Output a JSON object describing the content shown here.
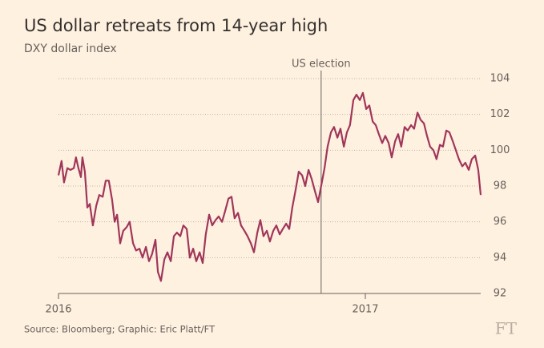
{
  "chart_data": {
    "type": "line",
    "title": "US dollar retreats from 14-year high",
    "subtitle": "DXY dollar index",
    "source": "Source: Bloomberg; Graphic: Eric Platt/FT",
    "logo": "FT",
    "annotation": {
      "text": "US election",
      "x": 2016.856
    },
    "xlim": [
      2016,
      2017.376
    ],
    "xticks": [
      2016,
      2017
    ],
    "ylim": [
      92,
      104
    ],
    "yticks": [
      92,
      94,
      96,
      98,
      100,
      102,
      104
    ],
    "grid": true,
    "x": [
      2016,
      2016.01,
      2016.018,
      2016.029,
      2016.039,
      2016.05,
      2016.057,
      2016.065,
      2016.073,
      2016.078,
      2016.086,
      2016.094,
      2016.102,
      2016.112,
      2016.123,
      2016.133,
      2016.144,
      2016.154,
      2016.164,
      2016.175,
      2016.183,
      2016.191,
      2016.201,
      2016.211,
      2016.222,
      2016.232,
      2016.243,
      2016.253,
      2016.264,
      2016.274,
      2016.285,
      2016.295,
      2016.305,
      2016.316,
      2016.324,
      2016.334,
      2016.345,
      2016.355,
      2016.366,
      2016.376,
      2016.386,
      2016.397,
      2016.407,
      2016.418,
      2016.428,
      2016.439,
      2016.449,
      2016.46,
      2016.47,
      2016.48,
      2016.491,
      2016.501,
      2016.512,
      2016.522,
      2016.533,
      2016.543,
      2016.554,
      2016.564,
      2016.574,
      2016.585,
      2016.595,
      2016.606,
      2016.616,
      2016.627,
      2016.637,
      2016.648,
      2016.658,
      2016.668,
      2016.679,
      2016.689,
      2016.7,
      2016.71,
      2016.721,
      2016.731,
      2016.742,
      2016.752,
      2016.762,
      2016.773,
      2016.783,
      2016.794,
      2016.804,
      2016.815,
      2016.825,
      2016.836,
      2016.846,
      2016.856,
      2016.867,
      2016.877,
      2016.888,
      2016.898,
      2016.909,
      2016.919,
      2016.93,
      2016.94,
      2016.95,
      2016.961,
      2016.971,
      2016.982,
      2016.992,
      2017.003,
      2017.013,
      2017.024,
      2017.034,
      2017.044,
      2017.055,
      2017.065,
      2017.076,
      2017.086,
      2017.097,
      2017.107,
      2017.117,
      2017.128,
      2017.138,
      2017.149,
      2017.159,
      2017.17,
      2017.18,
      2017.191,
      2017.201,
      2017.211,
      2017.222,
      2017.232,
      2017.243,
      2017.253,
      2017.264,
      2017.274,
      2017.285,
      2017.295,
      2017.305,
      2017.316,
      2017.326,
      2017.337,
      2017.347,
      2017.358,
      2017.368,
      2017.376
    ],
    "series": [
      {
        "name": "DXY",
        "color": "#a0365a",
        "values": [
          98.6,
          99.4,
          98.2,
          99.0,
          98.9,
          99.0,
          99.6,
          99.0,
          98.5,
          99.6,
          98.8,
          96.8,
          97.0,
          95.8,
          96.9,
          97.5,
          97.4,
          98.3,
          98.3,
          97.2,
          96.0,
          96.4,
          94.8,
          95.5,
          95.7,
          96.0,
          94.8,
          94.4,
          94.5,
          94.0,
          94.6,
          93.8,
          94.2,
          95.0,
          93.2,
          92.7,
          93.9,
          94.3,
          93.8,
          95.2,
          95.4,
          95.2,
          95.8,
          95.6,
          94.0,
          94.5,
          93.8,
          94.3,
          93.7,
          95.3,
          96.4,
          95.8,
          96.1,
          96.3,
          96.0,
          96.6,
          97.3,
          97.4,
          96.2,
          96.5,
          95.8,
          95.5,
          95.2,
          94.8,
          94.3,
          95.4,
          96.1,
          95.2,
          95.5,
          94.9,
          95.5,
          95.8,
          95.3,
          95.6,
          95.9,
          95.6,
          96.8,
          97.8,
          98.8,
          98.6,
          98.0,
          98.9,
          98.4,
          97.7,
          97.1,
          98.0,
          99.0,
          100.2,
          101.0,
          101.3,
          100.7,
          101.2,
          100.2,
          101.0,
          101.4,
          102.8,
          103.1,
          102.8,
          103.2,
          102.3,
          102.5,
          101.6,
          101.4,
          100.9,
          100.4,
          100.8,
          100.4,
          99.6,
          100.5,
          100.9,
          100.2,
          101.3,
          101.1,
          101.4,
          101.2,
          102.1,
          101.7,
          101.5,
          100.8,
          100.2,
          100.0,
          99.5,
          100.3,
          100.2,
          101.1,
          101.0,
          100.5,
          100.0,
          99.5,
          99.1,
          99.3,
          98.9,
          99.5,
          99.7,
          98.9,
          97.5
        ]
      }
    ]
  }
}
